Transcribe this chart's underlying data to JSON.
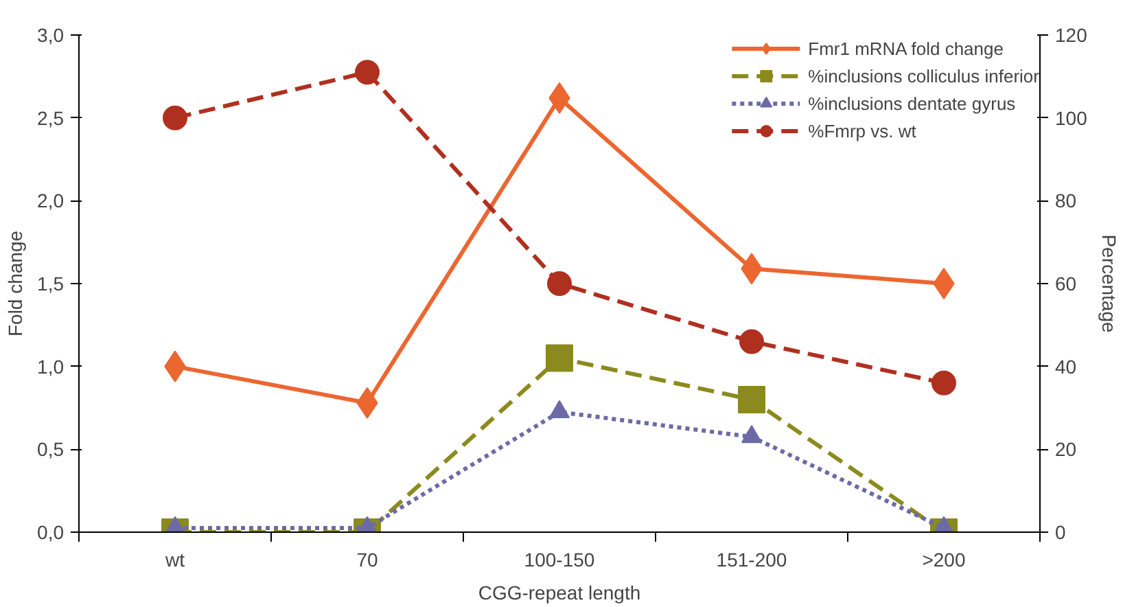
{
  "chart_data": {
    "type": "line",
    "xlabel": "CGG-repeat length",
    "ylabel": "Fold change",
    "y2label": "Percentage",
    "categories": [
      "wt",
      "70",
      "100-150",
      "151-200",
      ">200"
    ],
    "ylim": [
      0,
      3
    ],
    "yticks": [
      {
        "value": 0,
        "label": "0,0"
      },
      {
        "value": 0.5,
        "label": "0,5"
      },
      {
        "value": 1,
        "label": "1,0"
      },
      {
        "value": 1.5,
        "label": "1,5"
      },
      {
        "value": 2,
        "label": "2,0"
      },
      {
        "value": 2.5,
        "label": "2,5"
      },
      {
        "value": 3,
        "label": "3,0"
      }
    ],
    "y2lim": [
      0,
      120
    ],
    "y2ticks": [
      0,
      20,
      40,
      60,
      80,
      100,
      120
    ],
    "grid": false,
    "legend": "top right",
    "series": [
      {
        "name": "Fmr1 mRNA fold change",
        "color": "#ec6630",
        "marker": "diamond",
        "line_style": "solid",
        "values": [
          1.0,
          0.78,
          2.62,
          1.59,
          1.5
        ]
      },
      {
        "name": "%inclusions colliculus inferior",
        "color": "#8b8a1e",
        "marker": "square",
        "line_style": "dashed",
        "axis": "y2",
        "values": [
          0,
          0,
          42,
          32,
          0
        ]
      },
      {
        "name": "%inclusions dentate gyrus",
        "color": "#6c6aa6",
        "marker": "triangle",
        "line_style": "dotted",
        "axis": "y2",
        "values": [
          1,
          1,
          29,
          23,
          1
        ]
      },
      {
        "name": "%Fmrp vs. wt",
        "color": "#b03020",
        "marker": "circle",
        "line_style": "dashed",
        "axis": "y2",
        "values": [
          100,
          111,
          60,
          46,
          36
        ]
      }
    ]
  }
}
